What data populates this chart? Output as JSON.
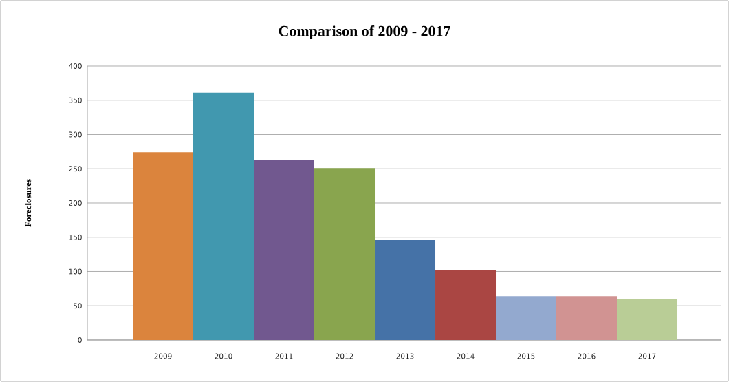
{
  "chart_data": {
    "type": "bar",
    "title": "Comparison of 2009 - 2017",
    "ylabel": "Foreclosures",
    "categories": [
      "2009",
      "2010",
      "2011",
      "2012",
      "2013",
      "2014",
      "2015",
      "2016",
      "2017"
    ],
    "values": [
      274,
      361,
      263,
      251,
      146,
      102,
      64,
      64,
      60
    ],
    "colors": [
      "#db843d",
      "#4198af",
      "#71588f",
      "#89a54e",
      "#4572a7",
      "#aa4643",
      "#93a9cf",
      "#d19392",
      "#b9cd96"
    ],
    "ylim": [
      0,
      400
    ],
    "yticks": [
      0,
      50,
      100,
      150,
      200,
      250,
      300,
      350,
      400
    ],
    "grid": "y"
  }
}
